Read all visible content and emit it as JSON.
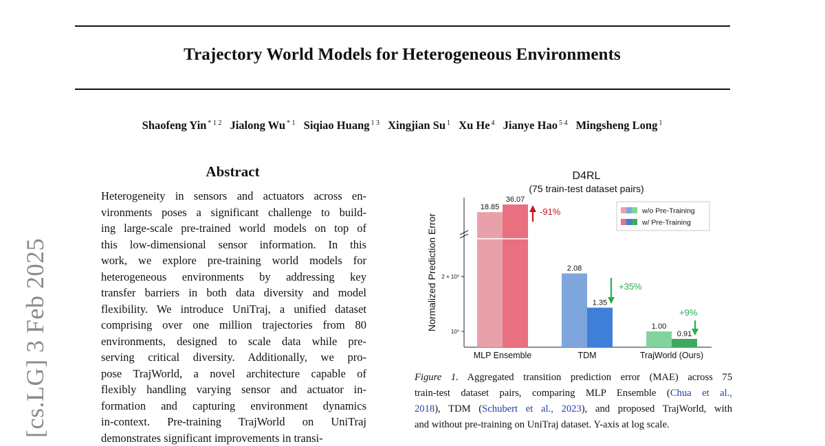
{
  "side_id": "[cs.LG]  3 Feb 2025",
  "title": "Trajectory World Models for Heterogeneous Environments",
  "authors": [
    {
      "name": "Shaofeng Yin",
      "aff": "* 1 2"
    },
    {
      "name": "Jialong Wu",
      "aff": "* 1"
    },
    {
      "name": "Siqiao Huang",
      "aff": "1 3"
    },
    {
      "name": "Xingjian Su",
      "aff": "1"
    },
    {
      "name": "Xu He",
      "aff": "4"
    },
    {
      "name": "Jianye Hao",
      "aff": "5 4"
    },
    {
      "name": "Mingsheng Long",
      "aff": "1"
    }
  ],
  "abstract": {
    "heading": "Abstract",
    "lines": [
      "Heterogeneity in sensors and actuators across en-",
      "vironments poses a significant challenge to build-",
      "ing large-scale pre-trained world models on top of",
      "this low-dimensional sensor information. In this",
      "work, we explore pre-training world models for",
      "heterogeneous environments by addressing key",
      "transfer barriers in both data diversity and model",
      "flexibility. We introduce UniTraj, a unified dataset",
      "comprising over one million trajectories from 80",
      "environments, designed to scale data while pre-",
      "serving critical diversity.  Additionally, we pro-",
      "pose TrajWorld, a novel architecture capable of",
      "flexibly handling varying sensor and actuator in-",
      "formation and capturing environment dynamics",
      "in-context.  Pre-training TrajWorld on UniTraj",
      "demonstrates significant improvements in transi-"
    ]
  },
  "chart_data": {
    "type": "bar",
    "title": "D4RL",
    "subtitle": "(75 train-test dataset pairs)",
    "ylabel": "Normalized Prediction Error",
    "yscale": "log",
    "y_ticks": [
      "10⁰",
      "2 × 10⁰"
    ],
    "y_axis_break": true,
    "categories": [
      "MLP Ensemble",
      "TDM",
      "TrajWorld (Ours)"
    ],
    "series": [
      {
        "name": "w/o Pre-Training",
        "values": [
          18.85,
          2.08,
          1.0
        ],
        "colors": [
          "#e8a1ab",
          "#7fa6dc",
          "#82d49c"
        ]
      },
      {
        "name": "w/ Pre-Training",
        "values": [
          36.07,
          1.35,
          0.91
        ],
        "colors": [
          "#e87080",
          "#3f7fd8",
          "#3fa860"
        ]
      }
    ],
    "value_labels": [
      [
        "18.85",
        "36.07"
      ],
      [
        "2.08",
        "1.35"
      ],
      [
        "1.00",
        "0.91"
      ]
    ],
    "changes": [
      {
        "text": "-91%",
        "direction": "up",
        "color": "#c8141e"
      },
      {
        "text": "+35%",
        "direction": "down",
        "color": "#22b14c"
      },
      {
        "text": "+9%",
        "direction": "down",
        "color": "#22b14c"
      }
    ],
    "legend_position": "top-right"
  },
  "caption": {
    "fig_label": "Figure 1.",
    "line1_text": " Aggregated transition prediction error (MAE) across 75",
    "line2_pre": "train-test dataset pairs, comparing MLP Ensemble (",
    "cite1_a": "Chua et al.,",
    "cite1_b": "2018",
    "line3_mid": "), TDM (",
    "cite2": "Schubert et al., 2023",
    "line3_post": "), and proposed TrajWorld, with",
    "line4": "and without pre-training on UniTraj dataset. Y-axis at log scale."
  }
}
